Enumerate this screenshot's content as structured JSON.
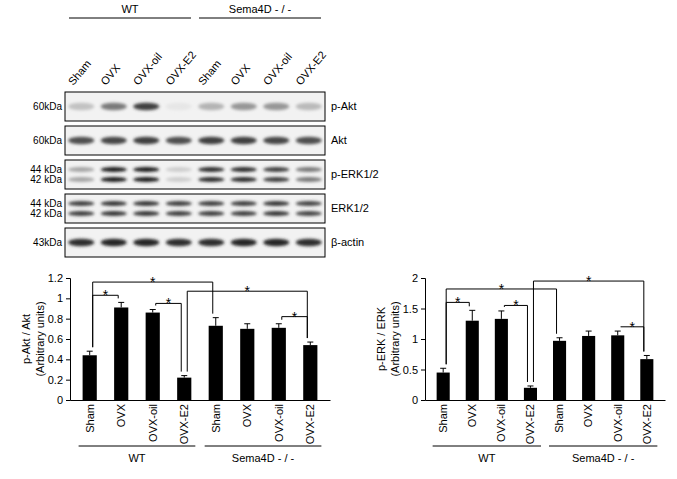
{
  "blot": {
    "groups": [
      {
        "label": "WT",
        "from": 0,
        "to": 3
      },
      {
        "label": "Sema4D - / -",
        "from": 4,
        "to": 7
      }
    ],
    "lanes": [
      "Sham",
      "OVX",
      "OVX-oil",
      "OVX-E2",
      "Sham",
      "OVX",
      "OVX-oil",
      "OVX-E2"
    ],
    "rows": [
      {
        "label": "p-Akt",
        "kda": [
          "60kDa"
        ],
        "density": [
          0.35,
          0.6,
          0.8,
          0.18,
          0.4,
          0.5,
          0.5,
          0.38
        ]
      },
      {
        "label": "Akt",
        "kda": [
          "60kDa"
        ],
        "density": [
          0.75,
          0.78,
          0.8,
          0.75,
          0.8,
          0.8,
          0.78,
          0.75
        ]
      },
      {
        "label": "p-ERK1/2",
        "kda": [
          "44 kDa",
          "42 kDa"
        ],
        "density": [
          0.45,
          0.9,
          0.9,
          0.3,
          0.85,
          0.85,
          0.8,
          0.6
        ]
      },
      {
        "label": "ERK1/2",
        "kda": [
          "44 kDa",
          "42 kDa"
        ],
        "density": [
          0.8,
          0.82,
          0.82,
          0.8,
          0.8,
          0.8,
          0.82,
          0.78
        ]
      },
      {
        "label": "β-actin",
        "kda": [
          "43kDa"
        ],
        "density": [
          0.85,
          0.88,
          0.88,
          0.85,
          0.85,
          0.88,
          0.88,
          0.85
        ]
      }
    ]
  },
  "chart_data": [
    {
      "type": "bar",
      "ylabel": [
        "p-Akt / Akt",
        "(Arbitrary units)"
      ],
      "categories": [
        "Sham",
        "OVX",
        "OVX-oil",
        "OVX-E2",
        "Sham",
        "OVX",
        "OVX-oil",
        "OVX-E2"
      ],
      "groups": [
        {
          "label": "WT",
          "from": 0,
          "to": 3
        },
        {
          "label": "Sema4D - / -",
          "from": 4,
          "to": 7
        }
      ],
      "values": [
        0.44,
        0.91,
        0.86,
        0.22,
        0.73,
        0.7,
        0.71,
        0.54
      ],
      "errors": [
        0.04,
        0.05,
        0.03,
        0.02,
        0.08,
        0.05,
        0.04,
        0.03
      ],
      "color": "#000000",
      "ylim": [
        0,
        1.2
      ],
      "yticks": [
        0,
        0.2,
        0.4,
        0.6,
        0.8,
        1,
        1.2
      ],
      "significance": [
        {
          "from": 0,
          "to": 1,
          "y": 1.03,
          "label": "*"
        },
        {
          "from": 0,
          "to": 4,
          "y": 1.16,
          "label": "*"
        },
        {
          "from": 2,
          "to": 3,
          "y": 0.95,
          "label": "*"
        },
        {
          "from": 3,
          "to": 7,
          "y": 1.07,
          "label": "*"
        },
        {
          "from": 6,
          "to": 7,
          "y": 0.82,
          "label": "*"
        }
      ]
    },
    {
      "type": "bar",
      "ylabel": [
        "p-ERK / ERK",
        "(Arbitrary units)"
      ],
      "categories": [
        "Sham",
        "OVX",
        "OVX-oil",
        "OVX-E2",
        "Sham",
        "OVX",
        "OVX-oil",
        "OVX-E2"
      ],
      "groups": [
        {
          "label": "WT",
          "from": 0,
          "to": 3
        },
        {
          "label": "Sema4D - / -",
          "from": 4,
          "to": 7
        }
      ],
      "values": [
        0.45,
        1.3,
        1.33,
        0.2,
        0.97,
        1.05,
        1.06,
        0.67
      ],
      "errors": [
        0.07,
        0.17,
        0.13,
        0.03,
        0.05,
        0.08,
        0.07,
        0.06
      ],
      "color": "#000000",
      "ylim": [
        0,
        2
      ],
      "yticks": [
        0,
        0.5,
        1,
        1.5,
        2
      ],
      "significance": [
        {
          "from": 0,
          "to": 1,
          "y": 1.6,
          "label": "*"
        },
        {
          "from": 0,
          "to": 4,
          "y": 1.82,
          "label": "*"
        },
        {
          "from": 2,
          "to": 3,
          "y": 1.55,
          "label": "*"
        },
        {
          "from": 3,
          "to": 7,
          "y": 1.95,
          "label": "*"
        },
        {
          "from": 6,
          "to": 7,
          "y": 1.2,
          "label": "*"
        }
      ]
    }
  ]
}
